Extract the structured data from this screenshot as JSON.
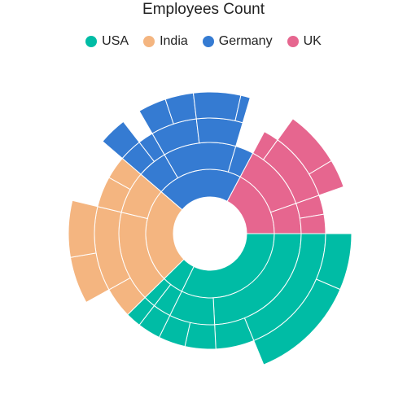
{
  "chart_data": {
    "type": "sunburst",
    "title": "Employees Count",
    "legend_position": "top",
    "center_hole": true,
    "series": [
      {
        "name": "USA",
        "color": "#00bca5",
        "children": [
          {
            "value": 60,
            "children": [
              {
                "value": 45,
                "children": [
                  {
                    "value": 35,
                    "children": [
                      {
                        "value": 12
                      },
                      {
                        "value": 23
                      }
                    ]
                  },
                  {
                    "value": 10
                  }
                ]
              },
              {
                "value": 15,
                "children": [
                  {
                    "value": 8
                  },
                  {
                    "value": 7
                  }
                ]
              }
            ]
          },
          {
            "value": 10,
            "children": [
              {
                "value": 6,
                "children": [
                  {
                    "value": 6
                  }
                ]
              },
              {
                "value": 4,
                "children": [
                  {
                    "value": 4
                  }
                ]
              }
            ]
          }
        ]
      },
      {
        "name": "India",
        "color": "#f4b580",
        "children": [
          {
            "value": 44,
            "children": [
              {
                "value": 30,
                "children": [
                  {
                    "value": 8
                  },
                  {
                    "value": 22,
                    "children": [
                      {
                        "value": 10
                      },
                      {
                        "value": 12
                      }
                    ]
                  }
                ]
              },
              {
                "value": 14,
                "children": [
                  {
                    "value": 8
                  },
                  {
                    "value": 6
                  }
                ]
              }
            ]
          }
        ]
      },
      {
        "name": "Germany",
        "color": "#357bd2",
        "children": [
          {
            "value": 40,
            "children": [
              {
                "value": 10,
                "children": [
                  {
                    "value": 6,
                    "children": [
                      {
                        "value": 6
                      }
                    ]
                  },
                  {
                    "value": 4
                  }
                ]
              },
              {
                "value": 24,
                "children": [
                  {
                    "value": 12,
                    "children": [
                      {
                        "value": 6
                      },
                      {
                        "value": 6
                      }
                    ]
                  },
                  {
                    "value": 12,
                    "children": [
                      {
                        "value": 10
                      },
                      {
                        "value": 2
                      }
                    ]
                  }
                ]
              },
              {
                "value": 6
              }
            ]
          }
        ]
      },
      {
        "name": "UK",
        "color": "#e6668f",
        "children": [
          {
            "value": 32,
            "children": [
              {
                "value": 22,
                "children": [
                  {
                    "value": 4
                  },
                  {
                    "value": 18,
                    "children": [
                      {
                        "value": 12
                      },
                      {
                        "value": 6
                      }
                    ]
                  }
                ]
              },
              {
                "value": 10,
                "children": [
                  {
                    "value": 5
                  },
                  {
                    "value": 5
                  }
                ]
              }
            ]
          }
        ]
      }
    ]
  }
}
